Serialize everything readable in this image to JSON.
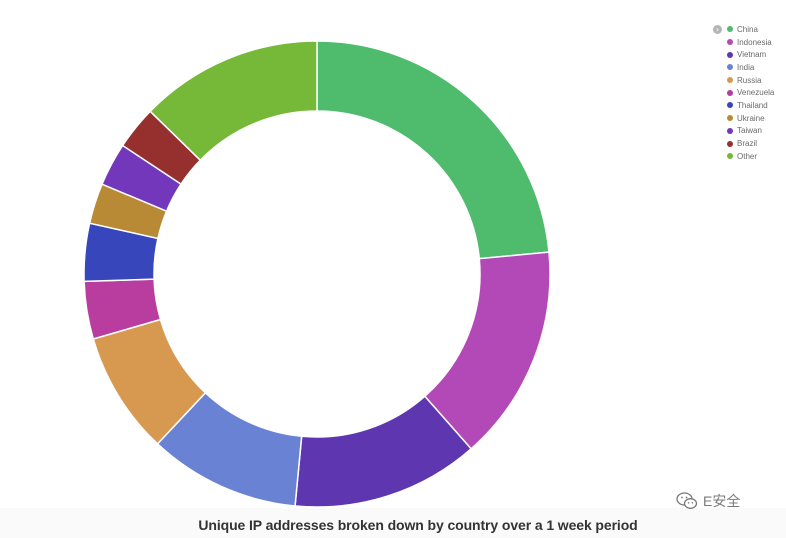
{
  "colors": {
    "China": "#4ebb6d",
    "Indonesia": "#b349b7",
    "Vietnam": "#5e37b0",
    "India": "#6a82d4",
    "Russia": "#d79950",
    "Venezuela": "#b93d9e",
    "Thailand": "#3747bb",
    "Ukraine": "#b88a35",
    "Taiwan": "#7237bb",
    "Brazil": "#96302e",
    "Other": "#76b838"
  },
  "chart_data": {
    "type": "pie",
    "donut": true,
    "title": "Unique IP addresses broken down by country over a 1 week period",
    "categories": [
      "China",
      "Indonesia",
      "Vietnam",
      "India",
      "Russia",
      "Venezuela",
      "Thailand",
      "Ukraine",
      "Taiwan",
      "Brazil",
      "Other"
    ],
    "values": [
      23.5,
      15.0,
      13.0,
      10.5,
      8.5,
      4.0,
      4.0,
      2.8,
      3.0,
      3.0,
      12.7
    ],
    "legend_position": "top-right"
  },
  "watermark": {
    "text": "E安全",
    "icon": "wechat-icon"
  },
  "legend_toggle_icon": "chevron-right-icon"
}
